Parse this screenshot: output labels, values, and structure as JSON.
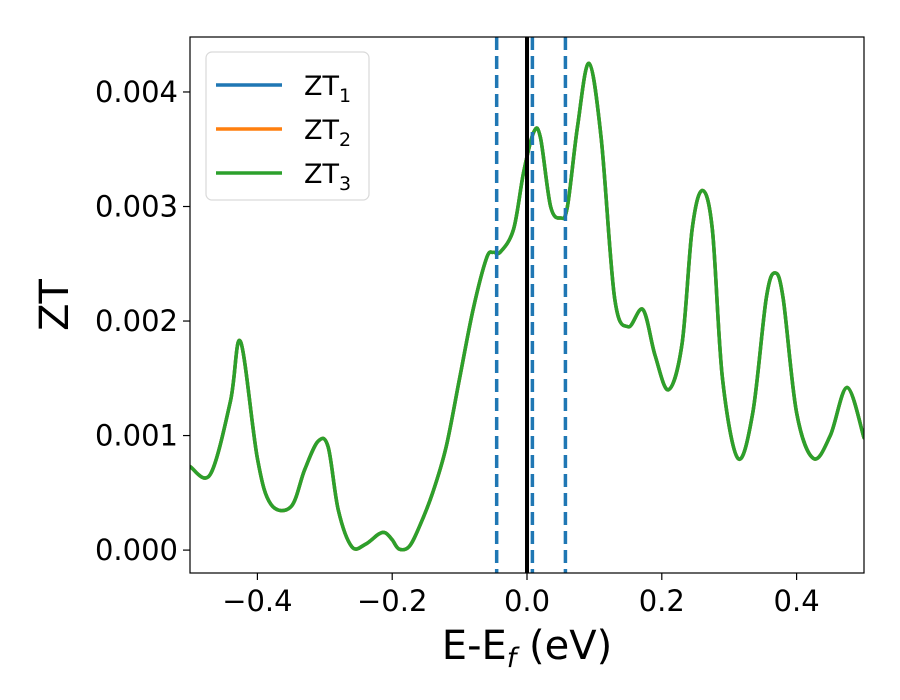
{
  "chart_data": {
    "type": "line",
    "title": "",
    "xlabel_parts": {
      "main": "E-E",
      "sub": "f",
      "rest": " (eV)"
    },
    "ylabel": "ZT",
    "xlim": [
      -0.5,
      0.5
    ],
    "ylim": [
      -0.0002,
      0.00448
    ],
    "xticks": [
      -0.4,
      -0.2,
      0.0,
      0.2,
      0.4
    ],
    "xtick_labels": [
      "−0.4",
      "−0.2",
      "0.0",
      "0.2",
      "0.4"
    ],
    "yticks": [
      0.0,
      0.001,
      0.002,
      0.003,
      0.004
    ],
    "ytick_labels": [
      "0.000",
      "0.001",
      "0.002",
      "0.003",
      "0.004"
    ],
    "grid": false,
    "legend": {
      "placement": "upper-left",
      "entries": [
        {
          "base": "ZT",
          "sub": "1",
          "color": "#1f77b4"
        },
        {
          "base": "ZT",
          "sub": "2",
          "color": "#ff7f0e"
        },
        {
          "base": "ZT",
          "sub": "3",
          "color": "#2ca02c"
        }
      ]
    },
    "vlines": [
      {
        "x": 0.0,
        "style": "solid",
        "color": "#000000"
      },
      {
        "x": -0.045,
        "style": "dashed",
        "color": "#1f77b4"
      },
      {
        "x": 0.008,
        "style": "dashed",
        "color": "#1f77b4"
      },
      {
        "x": 0.057,
        "style": "dashed",
        "color": "#1f77b4"
      }
    ],
    "series": [
      {
        "name": "ZT_1",
        "color": "#1f77b4",
        "x": [
          -0.5,
          -0.47,
          -0.44,
          -0.425,
          -0.4,
          -0.38,
          -0.35,
          -0.33,
          -0.31,
          -0.295,
          -0.28,
          -0.26,
          -0.24,
          -0.22,
          -0.21,
          -0.2,
          -0.19,
          -0.175,
          -0.16,
          -0.14,
          -0.12,
          -0.1,
          -0.08,
          -0.06,
          -0.05,
          -0.04,
          -0.02,
          -0.005,
          0.01,
          0.02,
          0.035,
          0.05,
          0.06,
          0.075,
          0.092,
          0.11,
          0.13,
          0.15,
          0.172,
          0.19,
          0.21,
          0.23,
          0.245,
          0.26,
          0.275,
          0.29,
          0.313,
          0.335,
          0.355,
          0.368,
          0.38,
          0.4,
          0.425,
          0.45,
          0.475,
          0.5
        ],
        "y": [
          0.00073,
          0.00066,
          0.0013,
          0.00182,
          0.0008,
          0.0004,
          0.00038,
          0.0007,
          0.00095,
          0.0009,
          0.00035,
          3e-05,
          5e-05,
          0.00014,
          0.00015,
          9e-05,
          1e-05,
          3e-05,
          0.0002,
          0.0005,
          0.0009,
          0.0015,
          0.0021,
          0.00255,
          0.0026,
          0.0026,
          0.0028,
          0.0033,
          0.00365,
          0.0036,
          0.003,
          0.0029,
          0.003,
          0.0037,
          0.00425,
          0.0036,
          0.0022,
          0.00195,
          0.0021,
          0.0017,
          0.0014,
          0.0018,
          0.0028,
          0.00314,
          0.0028,
          0.0015,
          0.0008,
          0.0012,
          0.0022,
          0.00242,
          0.0022,
          0.0012,
          0.0008,
          0.001,
          0.00142,
          0.00098
        ]
      },
      {
        "name": "ZT_2",
        "color": "#ff7f0e",
        "x": [
          -0.5,
          -0.47,
          -0.44,
          -0.425,
          -0.4,
          -0.38,
          -0.35,
          -0.33,
          -0.31,
          -0.295,
          -0.28,
          -0.26,
          -0.24,
          -0.22,
          -0.21,
          -0.2,
          -0.19,
          -0.175,
          -0.16,
          -0.14,
          -0.12,
          -0.1,
          -0.08,
          -0.06,
          -0.05,
          -0.04,
          -0.02,
          -0.005,
          0.01,
          0.02,
          0.035,
          0.05,
          0.06,
          0.075,
          0.092,
          0.11,
          0.13,
          0.15,
          0.172,
          0.19,
          0.21,
          0.23,
          0.245,
          0.26,
          0.275,
          0.29,
          0.313,
          0.335,
          0.355,
          0.368,
          0.38,
          0.4,
          0.425,
          0.45,
          0.475,
          0.5
        ],
        "y": [
          0.00073,
          0.00066,
          0.0013,
          0.00182,
          0.0008,
          0.0004,
          0.00038,
          0.0007,
          0.00095,
          0.0009,
          0.00035,
          3e-05,
          5e-05,
          0.00014,
          0.00015,
          9e-05,
          1e-05,
          3e-05,
          0.0002,
          0.0005,
          0.0009,
          0.0015,
          0.0021,
          0.00255,
          0.0026,
          0.0026,
          0.0028,
          0.0033,
          0.00365,
          0.0036,
          0.003,
          0.0029,
          0.003,
          0.0037,
          0.00425,
          0.0036,
          0.0022,
          0.00195,
          0.0021,
          0.0017,
          0.0014,
          0.0018,
          0.0028,
          0.00314,
          0.0028,
          0.0015,
          0.0008,
          0.0012,
          0.0022,
          0.00242,
          0.0022,
          0.0012,
          0.0008,
          0.001,
          0.00142,
          0.00098
        ]
      },
      {
        "name": "ZT_3",
        "color": "#2ca02c",
        "x": [
          -0.5,
          -0.47,
          -0.44,
          -0.425,
          -0.4,
          -0.38,
          -0.35,
          -0.33,
          -0.31,
          -0.295,
          -0.28,
          -0.26,
          -0.24,
          -0.22,
          -0.21,
          -0.2,
          -0.19,
          -0.175,
          -0.16,
          -0.14,
          -0.12,
          -0.1,
          -0.08,
          -0.06,
          -0.05,
          -0.04,
          -0.02,
          -0.005,
          0.01,
          0.02,
          0.035,
          0.05,
          0.06,
          0.075,
          0.092,
          0.11,
          0.13,
          0.15,
          0.172,
          0.19,
          0.21,
          0.23,
          0.245,
          0.26,
          0.275,
          0.29,
          0.313,
          0.335,
          0.355,
          0.368,
          0.38,
          0.4,
          0.425,
          0.45,
          0.475,
          0.5
        ],
        "y": [
          0.00073,
          0.00066,
          0.0013,
          0.00182,
          0.0008,
          0.0004,
          0.00038,
          0.0007,
          0.00095,
          0.0009,
          0.00035,
          3e-05,
          5e-05,
          0.00014,
          0.00015,
          9e-05,
          1e-05,
          3e-05,
          0.0002,
          0.0005,
          0.0009,
          0.0015,
          0.0021,
          0.00255,
          0.0026,
          0.0026,
          0.0028,
          0.0033,
          0.00365,
          0.0036,
          0.003,
          0.0029,
          0.003,
          0.0037,
          0.00425,
          0.0036,
          0.0022,
          0.00195,
          0.0021,
          0.0017,
          0.0014,
          0.0018,
          0.0028,
          0.00314,
          0.0028,
          0.0015,
          0.0008,
          0.0012,
          0.0022,
          0.00242,
          0.0022,
          0.0012,
          0.0008,
          0.001,
          0.00142,
          0.00098
        ]
      }
    ]
  }
}
